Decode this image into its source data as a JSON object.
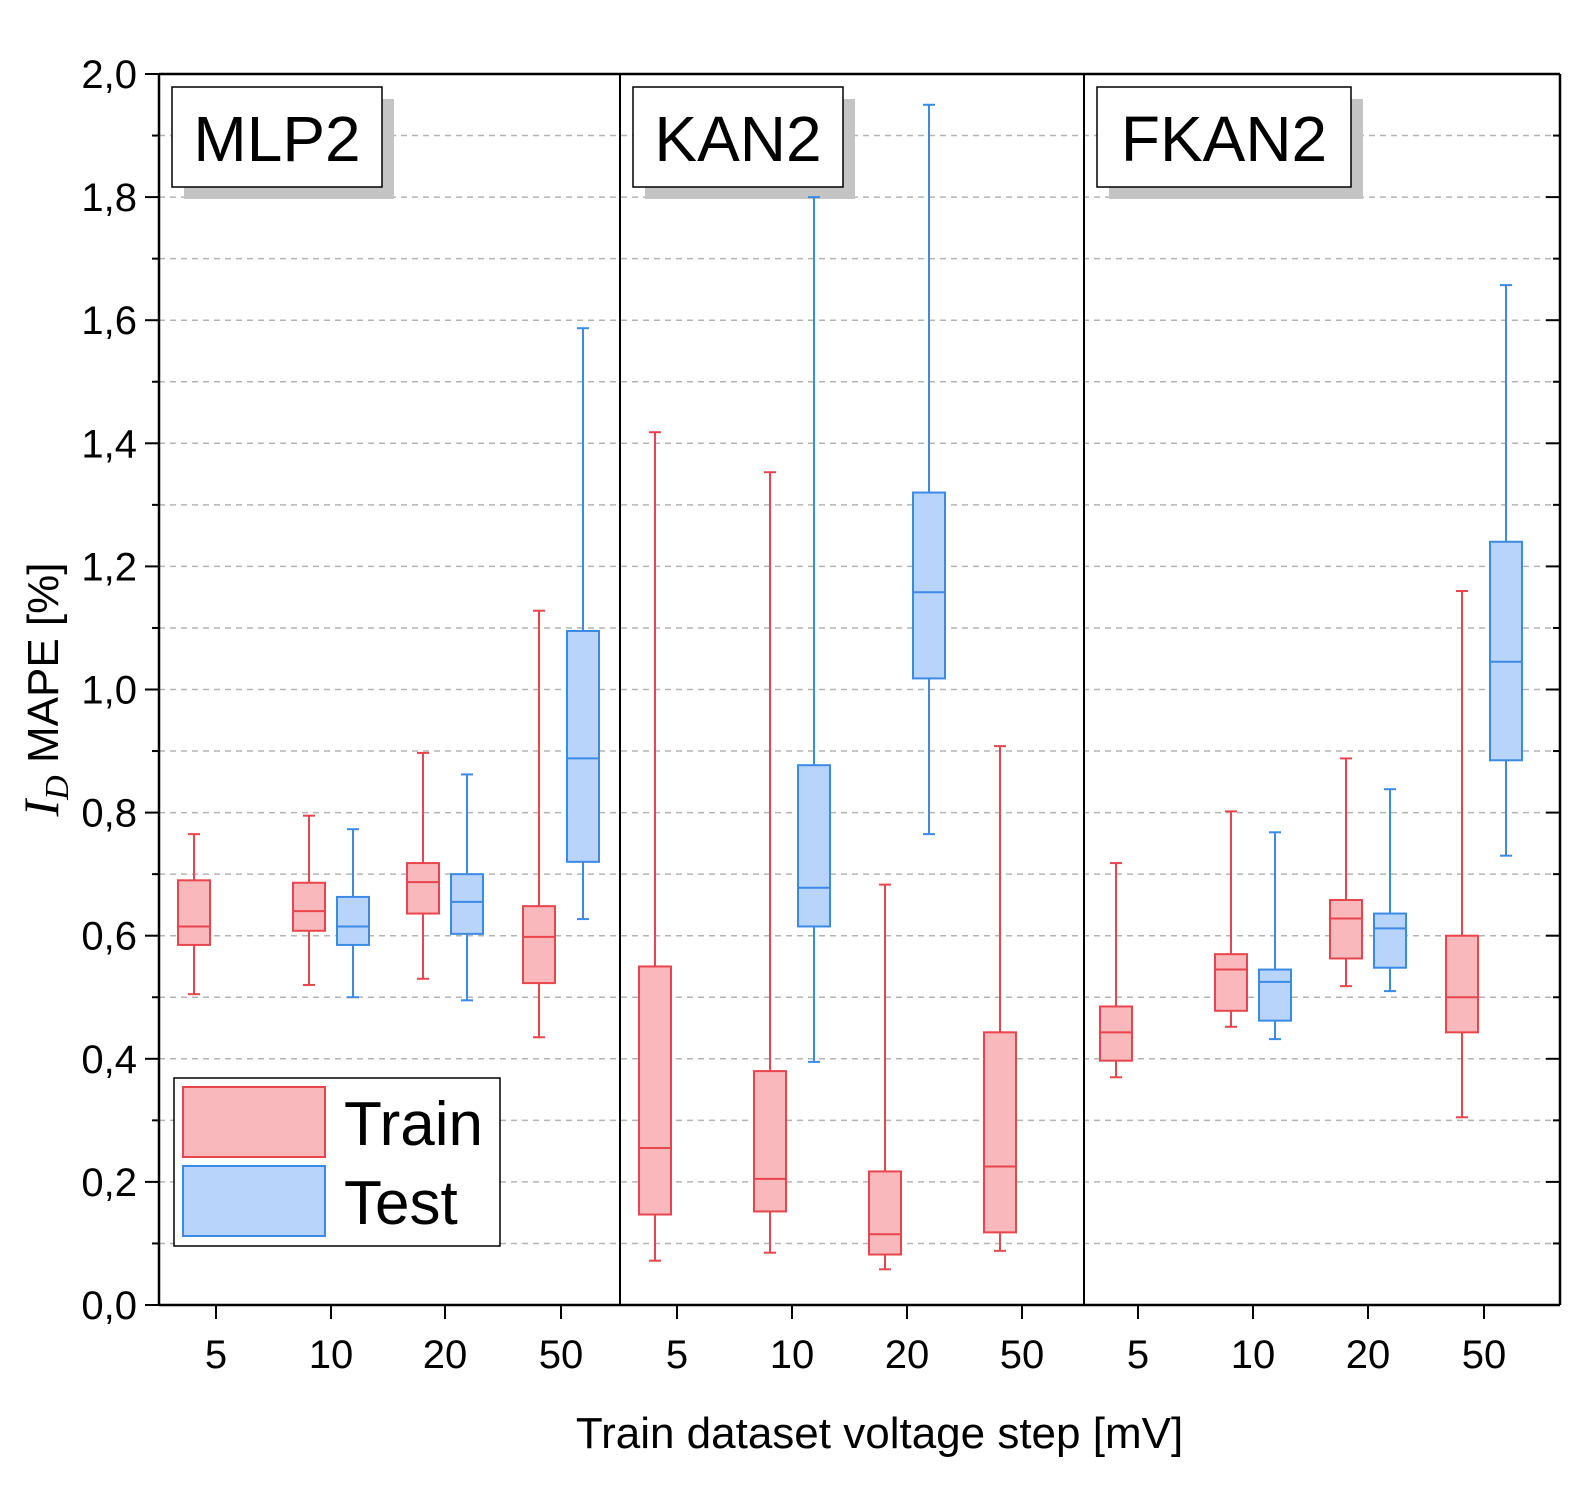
{
  "chart_data": {
    "type": "box",
    "ylabel_symbol": "I",
    "ylabel_subscript": "D",
    "ylabel_text": " MAPE [%]",
    "xlabel": "Train dataset voltage step [mV]",
    "ylim": [
      0,
      2.0
    ],
    "yticks": [
      "0,0",
      "0,2",
      "0,4",
      "0,6",
      "0,8",
      "1,0",
      "1,2",
      "1,4",
      "1,6",
      "1,8",
      "2,0"
    ],
    "ytick_values": [
      0,
      0.2,
      0.4,
      0.6,
      0.8,
      1.0,
      1.2,
      1.4,
      1.6,
      1.8,
      2.0
    ],
    "minor_grid_values": [
      0.1,
      0.3,
      0.5,
      0.7,
      0.9,
      1.1,
      1.3,
      1.5,
      1.7,
      1.9
    ],
    "grid": "dashed horizontal",
    "legend": {
      "position": "bottom-left",
      "entries": [
        {
          "name": "Train",
          "fill": "#f9b8bb",
          "stroke": "#e8454c"
        },
        {
          "name": "Test",
          "fill": "#b8d4fa",
          "stroke": "#3a8ae6"
        }
      ]
    },
    "colors": {
      "train_fill": "#f9b8bb",
      "train_stroke": "#e8454c",
      "test_fill": "#b8d4fa",
      "test_stroke": "#3a8ae6"
    },
    "panels": [
      {
        "title": "MLP2",
        "categories": [
          "5",
          "10",
          "20",
          "50"
        ],
        "train": [
          {
            "min": 0.505,
            "q1": 0.585,
            "median": 0.615,
            "q3": 0.69,
            "max": 0.765
          },
          {
            "min": 0.52,
            "q1": 0.608,
            "median": 0.64,
            "q3": 0.686,
            "max": 0.795
          },
          {
            "min": 0.53,
            "q1": 0.636,
            "median": 0.687,
            "q3": 0.718,
            "max": 0.897
          },
          {
            "min": 0.435,
            "q1": 0.523,
            "median": 0.598,
            "q3": 0.648,
            "max": 1.128
          }
        ],
        "test": [
          null,
          {
            "min": 0.5,
            "q1": 0.585,
            "median": 0.615,
            "q3": 0.663,
            "max": 0.773
          },
          {
            "min": 0.495,
            "q1": 0.603,
            "median": 0.655,
            "q3": 0.7,
            "max": 0.862
          },
          {
            "min": 0.627,
            "q1": 0.72,
            "median": 0.888,
            "q3": 1.095,
            "max": 1.587
          }
        ]
      },
      {
        "title": "KAN2",
        "categories": [
          "5",
          "10",
          "20",
          "50"
        ],
        "train": [
          {
            "min": 0.072,
            "q1": 0.147,
            "median": 0.255,
            "q3": 0.55,
            "max": 1.418
          },
          {
            "min": 0.085,
            "q1": 0.152,
            "median": 0.205,
            "q3": 0.38,
            "max": 1.353
          },
          {
            "min": 0.058,
            "q1": 0.082,
            "median": 0.115,
            "q3": 0.217,
            "max": 0.683
          },
          {
            "min": 0.088,
            "q1": 0.118,
            "median": 0.225,
            "q3": 0.443,
            "max": 0.908
          }
        ],
        "test": [
          null,
          {
            "min": 0.395,
            "q1": 0.615,
            "median": 0.678,
            "q3": 0.877,
            "max": 1.8
          },
          {
            "min": 0.765,
            "q1": 1.018,
            "median": 1.158,
            "q3": 1.32,
            "max": 1.95
          },
          null
        ]
      },
      {
        "title": "FKAN2",
        "categories": [
          "5",
          "10",
          "20",
          "50"
        ],
        "train": [
          {
            "min": 0.37,
            "q1": 0.397,
            "median": 0.443,
            "q3": 0.485,
            "max": 0.718
          },
          {
            "min": 0.452,
            "q1": 0.478,
            "median": 0.545,
            "q3": 0.57,
            "max": 0.802
          },
          {
            "min": 0.518,
            "q1": 0.563,
            "median": 0.628,
            "q3": 0.658,
            "max": 0.888
          },
          {
            "min": 0.305,
            "q1": 0.443,
            "median": 0.5,
            "q3": 0.6,
            "max": 1.16
          }
        ],
        "test": [
          null,
          {
            "min": 0.432,
            "q1": 0.462,
            "median": 0.525,
            "q3": 0.545,
            "max": 0.768
          },
          {
            "min": 0.51,
            "q1": 0.548,
            "median": 0.612,
            "q3": 0.636,
            "max": 0.838
          },
          {
            "min": 0.73,
            "q1": 0.885,
            "median": 1.045,
            "q3": 1.24,
            "max": 1.657
          }
        ]
      }
    ]
  }
}
